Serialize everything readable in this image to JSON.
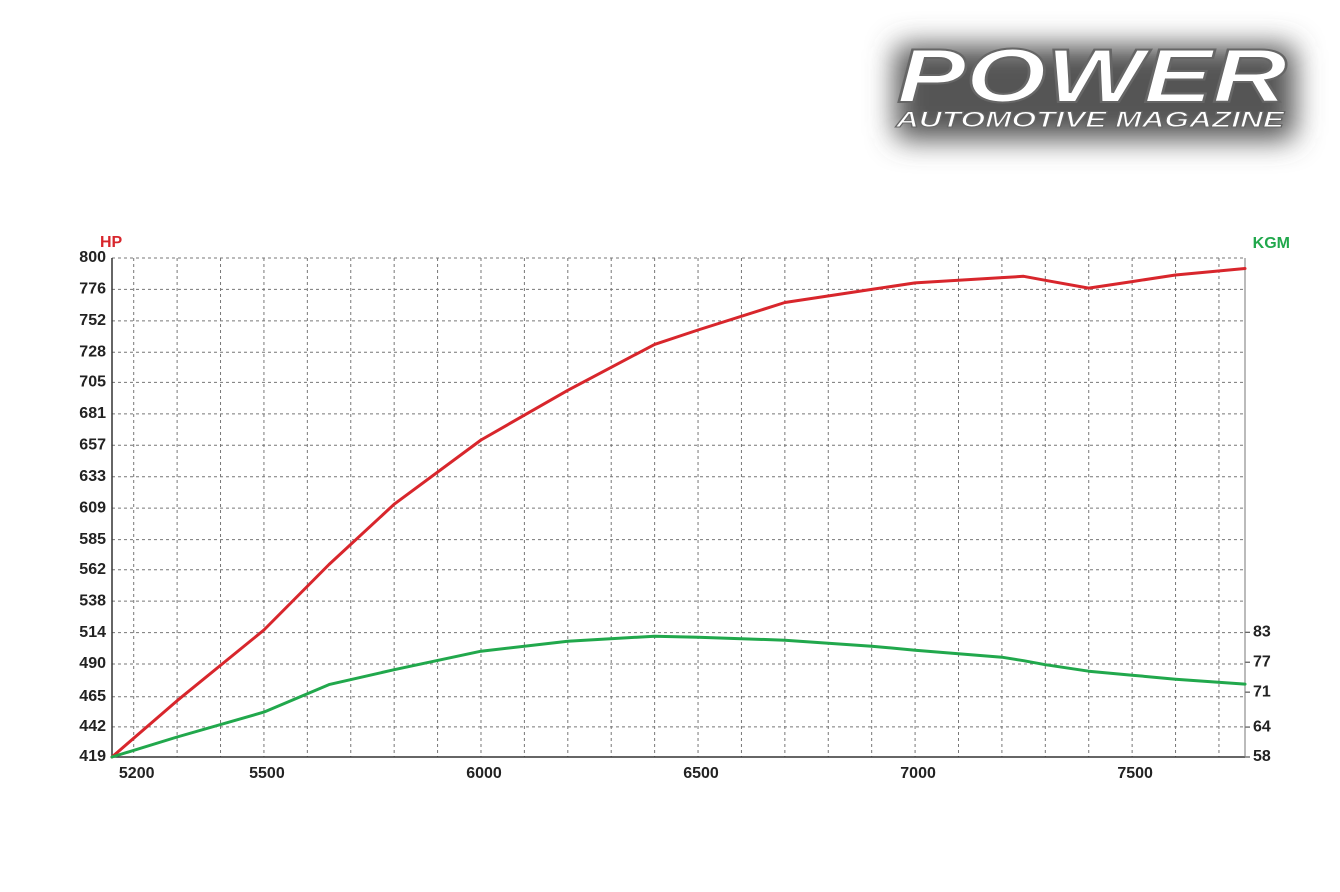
{
  "logo": {
    "title": "POWER",
    "subtitle": "AUTOMOTIVE MAGAZINE"
  },
  "chart_data": {
    "type": "line",
    "y_label": "HP",
    "y2_label": "KGM",
    "x": [
      5150,
      5300,
      5500,
      5650,
      5800,
      6000,
      6200,
      6400,
      6500,
      6700,
      6900,
      7000,
      7200,
      7250,
      7300,
      7400,
      7500,
      7600,
      7760
    ],
    "series": [
      {
        "name": "HP",
        "color": "#d8262c",
        "values": [
          419,
          462,
          516,
          566,
          612,
          661,
          699,
          734,
          745,
          766,
          776,
          781,
          785,
          786,
          783,
          777,
          782,
          787,
          792
        ]
      },
      {
        "name": "KGM",
        "color": "#21a84c",
        "axis": "y2",
        "values": [
          58,
          62,
          67,
          72.5,
          75.5,
          79.2,
          81.2,
          82.2,
          82,
          81.4,
          80.2,
          79.4,
          78,
          77.3,
          76.5,
          75.2,
          74.4,
          73.6,
          72.6
        ]
      }
    ],
    "xlim": [
      5150,
      7760
    ],
    "xticks": [
      5200,
      5500,
      6000,
      6500,
      7000,
      7500
    ],
    "ylim": [
      419,
      800
    ],
    "yticks": [
      419,
      442,
      465,
      490,
      514,
      538,
      562,
      585,
      609,
      633,
      657,
      681,
      705,
      728,
      752,
      776,
      800
    ],
    "y2lim": [
      58,
      158
    ],
    "y2ticks": [
      58,
      64,
      71,
      77,
      83
    ],
    "grid": true
  }
}
